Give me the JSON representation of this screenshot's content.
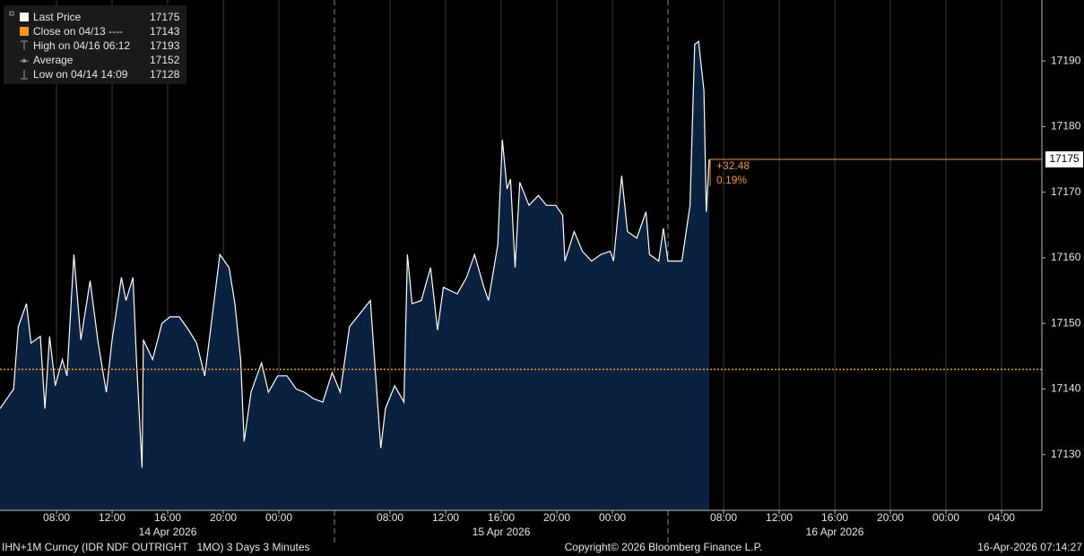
{
  "chart_data": {
    "type": "area",
    "legend": [
      {
        "label": "Last Price",
        "value": 17175
      },
      {
        "label": "Close on 04/13 ----",
        "value": 17143
      },
      {
        "label": "High on 04/16 06:12",
        "value": 17193
      },
      {
        "label": "Average",
        "value": 17152
      },
      {
        "label": "Low on 04/14 14:09",
        "value": 17128
      }
    ],
    "change": "+32.48",
    "change_pct": "0.19%",
    "line_color": "#ffffff",
    "fill_color": "#0b2140",
    "close_color": "#f7941d",
    "xlim": [
      "2026-04-14T03:56",
      "2026-04-17T06:54"
    ],
    "xticks": [
      {
        "value": "2026-04-14T08:00",
        "label": "08:00"
      },
      {
        "value": "2026-04-14T12:00",
        "label": "12:00"
      },
      {
        "value": "2026-04-14T16:00",
        "label": "16:00"
      },
      {
        "value": "2026-04-14T20:00",
        "label": "20:00"
      },
      {
        "value": "2026-04-15T00:00",
        "label": "00:00"
      },
      {
        "value": "2026-04-15T08:00",
        "label": "08:00"
      },
      {
        "value": "2026-04-15T12:00",
        "label": "12:00"
      },
      {
        "value": "2026-04-15T16:00",
        "label": "16:00"
      },
      {
        "value": "2026-04-15T20:00",
        "label": "20:00"
      },
      {
        "value": "2026-04-16T00:00",
        "label": "00:00"
      },
      {
        "value": "2026-04-16T08:00",
        "label": "08:00"
      },
      {
        "value": "2026-04-16T12:00",
        "label": "12:00"
      },
      {
        "value": "2026-04-16T16:00",
        "label": "16:00"
      },
      {
        "value": "2026-04-16T20:00",
        "label": "20:00"
      },
      {
        "value": "2026-04-17T00:00",
        "label": "00:00"
      },
      {
        "value": "2026-04-17T04:00",
        "label": "04:00"
      }
    ],
    "date_labels": [
      {
        "value": "2026-04-14T16:00",
        "label": "14 Apr 2026"
      },
      {
        "value": "2026-04-15T16:00",
        "label": "15 Apr 2026"
      },
      {
        "value": "2026-04-16T16:00",
        "label": "16 Apr 2026"
      }
    ],
    "session_breaks": [
      "2026-04-15T04:00",
      "2026-04-16T04:00"
    ],
    "ylim": [
      17121.5,
      17199.3
    ],
    "yticks": [
      17130,
      17140,
      17150,
      17160,
      17170,
      17180,
      17190
    ],
    "series": [
      {
        "name": "Last Price",
        "color": "#ffffff",
        "x": [
          "2026-04-14T03:56",
          "2026-04-14T04:55",
          "2026-04-14T05:15",
          "2026-04-14T05:50",
          "2026-04-14T06:10",
          "2026-04-14T06:50",
          "2026-04-14T07:10",
          "2026-04-14T07:30",
          "2026-04-14T07:55",
          "2026-04-14T08:25",
          "2026-04-14T08:45",
          "2026-04-14T09:15",
          "2026-04-14T09:45",
          "2026-04-14T10:25",
          "2026-04-14T11:00",
          "2026-04-14T11:35",
          "2026-04-14T12:00",
          "2026-04-14T12:40",
          "2026-04-14T13:00",
          "2026-04-14T13:30",
          "2026-04-14T13:45",
          "2026-04-14T14:09",
          "2026-04-14T14:15",
          "2026-04-14T14:55",
          "2026-04-14T15:35",
          "2026-04-14T16:10",
          "2026-04-14T16:50",
          "2026-04-14T17:30",
          "2026-04-14T18:05",
          "2026-04-14T18:40",
          "2026-04-14T19:05",
          "2026-04-14T19:45",
          "2026-04-14T20:25",
          "2026-04-14T20:50",
          "2026-04-14T21:15",
          "2026-04-14T21:30",
          "2026-04-14T22:00",
          "2026-04-14T22:45",
          "2026-04-14T23:15",
          "2026-04-14T23:55",
          "2026-04-15T00:35",
          "2026-04-15T01:15",
          "2026-04-15T01:50",
          "2026-04-15T02:30",
          "2026-04-15T03:10",
          "2026-04-15T03:50",
          "2026-04-15T04:25",
          "2026-04-15T05:05",
          "2026-04-15T06:35",
          "2026-04-15T06:55",
          "2026-04-15T07:20",
          "2026-04-15T07:40",
          "2026-04-15T08:20",
          "2026-04-15T09:00",
          "2026-04-15T09:15",
          "2026-04-15T09:35",
          "2026-04-15T10:15",
          "2026-04-15T10:55",
          "2026-04-15T11:25",
          "2026-04-15T11:50",
          "2026-04-15T12:50",
          "2026-04-15T13:30",
          "2026-04-15T14:05",
          "2026-04-15T14:45",
          "2026-04-15T15:05",
          "2026-04-15T15:45",
          "2026-04-15T16:05",
          "2026-04-15T16:25",
          "2026-04-15T16:40",
          "2026-04-15T17:00",
          "2026-04-15T17:20",
          "2026-04-15T18:00",
          "2026-04-15T18:40",
          "2026-04-15T19:15",
          "2026-04-15T19:55",
          "2026-04-15T20:25",
          "2026-04-15T20:35",
          "2026-04-15T21:15",
          "2026-04-15T21:50",
          "2026-04-15T22:30",
          "2026-04-15T23:10",
          "2026-04-15T23:50",
          "2026-04-16T00:05",
          "2026-04-16T00:40",
          "2026-04-16T01:05",
          "2026-04-16T01:45",
          "2026-04-16T02:25",
          "2026-04-16T02:40",
          "2026-04-16T03:20",
          "2026-04-16T03:40",
          "2026-04-16T04:00",
          "2026-04-16T05:00",
          "2026-04-16T05:35",
          "2026-04-16T05:55",
          "2026-04-16T06:12",
          "2026-04-16T06:35",
          "2026-04-16T06:45",
          "2026-04-16T06:58"
        ],
        "values": [
          17137,
          17140,
          17149.5,
          17153,
          17147,
          17148,
          17137,
          17148,
          17140.5,
          17144.5,
          17142,
          17160.5,
          17147.5,
          17156.5,
          17147,
          17139.5,
          17147.5,
          17157,
          17153.5,
          17157,
          17144.5,
          17128,
          17147.5,
          17144.5,
          17150,
          17151,
          17151,
          17149,
          17147,
          17142,
          17149,
          17160.5,
          17158.5,
          17153,
          17144.5,
          17132,
          17139.5,
          17144,
          17139.5,
          17142,
          17142,
          17140,
          17139.5,
          17138.5,
          17138,
          17142.5,
          17139.5,
          17149.5,
          17153.5,
          17143.5,
          17131,
          17137,
          17140.5,
          17138,
          17160.5,
          17153,
          17153.5,
          17158.5,
          17149,
          17155.5,
          17154.5,
          17157,
          17160.5,
          17155.5,
          17153.5,
          17162,
          17178,
          17170.5,
          17172,
          17158.5,
          17171.5,
          17168,
          17169.5,
          17168,
          17168,
          17166.5,
          17159.5,
          17164,
          17161,
          17159.5,
          17160.5,
          17161,
          17159.5,
          17172.5,
          17164,
          17163,
          17167,
          17160.5,
          17159.5,
          17164.5,
          17159.5,
          17159.5,
          17168,
          17192.5,
          17193,
          17185.5,
          17167,
          17175
        ]
      }
    ],
    "footer": {
      "security": "IHN+1M Curncy (IDR NDF OUTRIGHT   1MO) 3 Days 3 Minutes",
      "copyright": "Copyright© 2026 Bloomberg Finance L.P.",
      "timestamp": "16-Apr-2026 07:14:27"
    }
  }
}
